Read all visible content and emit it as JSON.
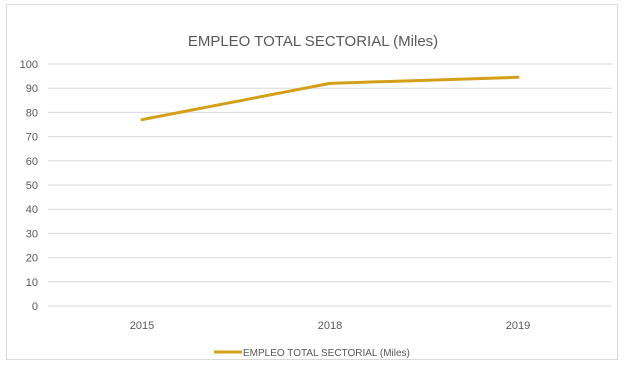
{
  "chart_data": {
    "type": "line",
    "title": "EMPLEO TOTAL SECTORIAL (Miles)",
    "xlabel": "",
    "ylabel": "",
    "categories": [
      "2015",
      "2018",
      "2019"
    ],
    "series": [
      {
        "name": "EMPLEO TOTAL SECTORIAL (Miles)",
        "values": [
          77,
          92,
          94.5
        ],
        "color": "#d4a019"
      }
    ],
    "ylim": [
      0,
      100
    ],
    "yticks": [
      0,
      10,
      20,
      30,
      40,
      50,
      60,
      70,
      80,
      90,
      100
    ],
    "grid": true,
    "legend": "bottom",
    "colors": {
      "grid": "#d9d9d9",
      "text": "#595959",
      "line": "#d4a019"
    }
  }
}
